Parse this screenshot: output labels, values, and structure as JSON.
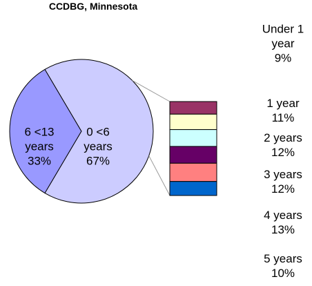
{
  "chart_data": {
    "type": "pie",
    "title": "CCDBG, Minnesota",
    "categories": [
      "6 <13 years",
      "0 <6 years"
    ],
    "values": [
      33,
      67
    ],
    "value_labels": [
      "33%",
      "67%"
    ],
    "colors": [
      "#9999ff",
      "#ccccff"
    ],
    "breakdown": {
      "of": "0 <6 years",
      "categories": [
        "Under 1 year",
        "1 year",
        "2 years",
        "3 years",
        "4 years",
        "5 years"
      ],
      "values": [
        9,
        11,
        12,
        12,
        13,
        10
      ],
      "value_labels": [
        "9%",
        "11%",
        "12%",
        "12%",
        "13%",
        "10%"
      ],
      "colors": [
        "#993366",
        "#ffffcc",
        "#ccffff",
        "#660066",
        "#ff8080",
        "#0066cc"
      ]
    }
  }
}
